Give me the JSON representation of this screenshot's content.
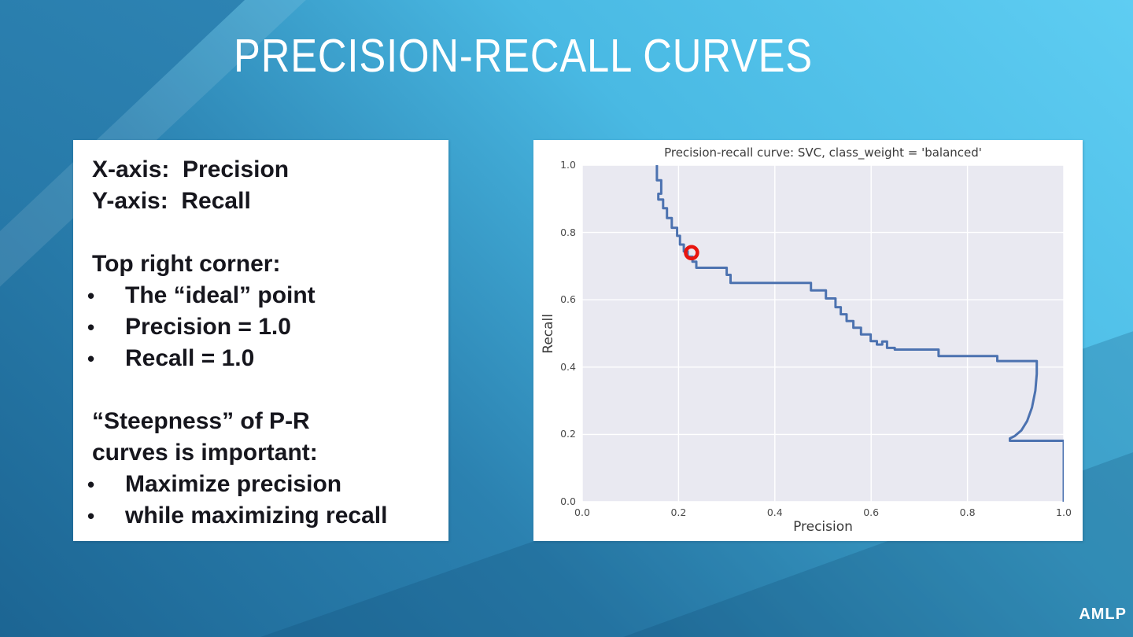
{
  "slide": {
    "title": "PRECISION-RECALL CURVES",
    "footer": "AMLP",
    "colors": {
      "background_light": "#5ecdf2",
      "background_mid": "#2b81b0",
      "background_dark": "#1c6593",
      "corner_triangle_dark": "#1f6c9b"
    }
  },
  "notes": {
    "lines": [
      {
        "type": "plain",
        "text": "X-axis:  Precision"
      },
      {
        "type": "plain",
        "text": "Y-axis:  Recall"
      },
      {
        "type": "spacer",
        "text": ""
      },
      {
        "type": "plain",
        "text": "Top right corner:"
      },
      {
        "type": "bullet",
        "text": "The “ideal” point"
      },
      {
        "type": "bullet",
        "text": "Precision = 1.0"
      },
      {
        "type": "bullet",
        "text": "Recall = 1.0"
      },
      {
        "type": "spacer",
        "text": ""
      },
      {
        "type": "plain",
        "text": "“Steepness” of P-R curves is important:"
      },
      {
        "type": "bullet",
        "text": "Maximize precision"
      },
      {
        "type": "bullet",
        "text": "while maximizing recall"
      }
    ]
  },
  "chart_data": {
    "type": "line",
    "title": "Precision-recall curve: SVC, class_weight = 'balanced'",
    "xlabel": "Precision",
    "ylabel": "Recall",
    "xlim": [
      0.0,
      1.0
    ],
    "ylim": [
      0.0,
      1.0
    ],
    "x_ticks": [
      0.0,
      0.2,
      0.4,
      0.6,
      0.8,
      1.0
    ],
    "y_ticks": [
      0.0,
      0.2,
      0.4,
      0.6,
      0.8,
      1.0
    ],
    "grid": true,
    "legend": "none",
    "style": {
      "plot_background": "#e9e9f1",
      "grid_color": "#ffffff",
      "line_color": "#4c72b0",
      "marker_color": "#e8150f"
    },
    "series": [
      {
        "name": "precision_recall_step_curve",
        "points": [
          [
            0.155,
            1.0
          ],
          [
            0.155,
            0.955
          ],
          [
            0.164,
            0.955
          ],
          [
            0.164,
            0.915
          ],
          [
            0.158,
            0.915
          ],
          [
            0.158,
            0.898
          ],
          [
            0.168,
            0.898
          ],
          [
            0.168,
            0.872
          ],
          [
            0.176,
            0.872
          ],
          [
            0.176,
            0.843
          ],
          [
            0.186,
            0.843
          ],
          [
            0.186,
            0.814
          ],
          [
            0.197,
            0.814
          ],
          [
            0.197,
            0.79
          ],
          [
            0.203,
            0.79
          ],
          [
            0.203,
            0.764
          ],
          [
            0.211,
            0.764
          ],
          [
            0.211,
            0.744
          ],
          [
            0.219,
            0.744
          ],
          [
            0.219,
            0.728
          ],
          [
            0.229,
            0.728
          ],
          [
            0.229,
            0.713
          ],
          [
            0.237,
            0.713
          ],
          [
            0.237,
            0.695
          ],
          [
            0.3,
            0.695
          ],
          [
            0.3,
            0.674
          ],
          [
            0.308,
            0.674
          ],
          [
            0.308,
            0.65
          ],
          [
            0.475,
            0.65
          ],
          [
            0.475,
            0.628
          ],
          [
            0.506,
            0.628
          ],
          [
            0.506,
            0.604
          ],
          [
            0.526,
            0.604
          ],
          [
            0.526,
            0.578
          ],
          [
            0.537,
            0.578
          ],
          [
            0.537,
            0.557
          ],
          [
            0.549,
            0.557
          ],
          [
            0.549,
            0.537
          ],
          [
            0.563,
            0.537
          ],
          [
            0.563,
            0.517
          ],
          [
            0.579,
            0.517
          ],
          [
            0.579,
            0.497
          ],
          [
            0.599,
            0.497
          ],
          [
            0.599,
            0.477
          ],
          [
            0.612,
            0.477
          ],
          [
            0.612,
            0.467
          ],
          [
            0.623,
            0.467
          ],
          [
            0.623,
            0.476
          ],
          [
            0.633,
            0.476
          ],
          [
            0.633,
            0.457
          ],
          [
            0.649,
            0.457
          ],
          [
            0.649,
            0.452
          ],
          [
            0.74,
            0.452
          ],
          [
            0.74,
            0.433
          ],
          [
            0.862,
            0.433
          ],
          [
            0.862,
            0.418
          ],
          [
            0.944,
            0.418
          ],
          [
            0.944,
            0.38
          ],
          [
            0.941,
            0.33
          ],
          [
            0.934,
            0.28
          ],
          [
            0.924,
            0.24
          ],
          [
            0.912,
            0.212
          ],
          [
            0.898,
            0.195
          ],
          [
            0.888,
            0.188
          ],
          [
            0.888,
            0.181
          ],
          [
            1.0,
            0.181
          ],
          [
            1.0,
            0.0
          ]
        ]
      }
    ],
    "highlight_marker": {
      "x": 0.227,
      "y": 0.74
    }
  }
}
